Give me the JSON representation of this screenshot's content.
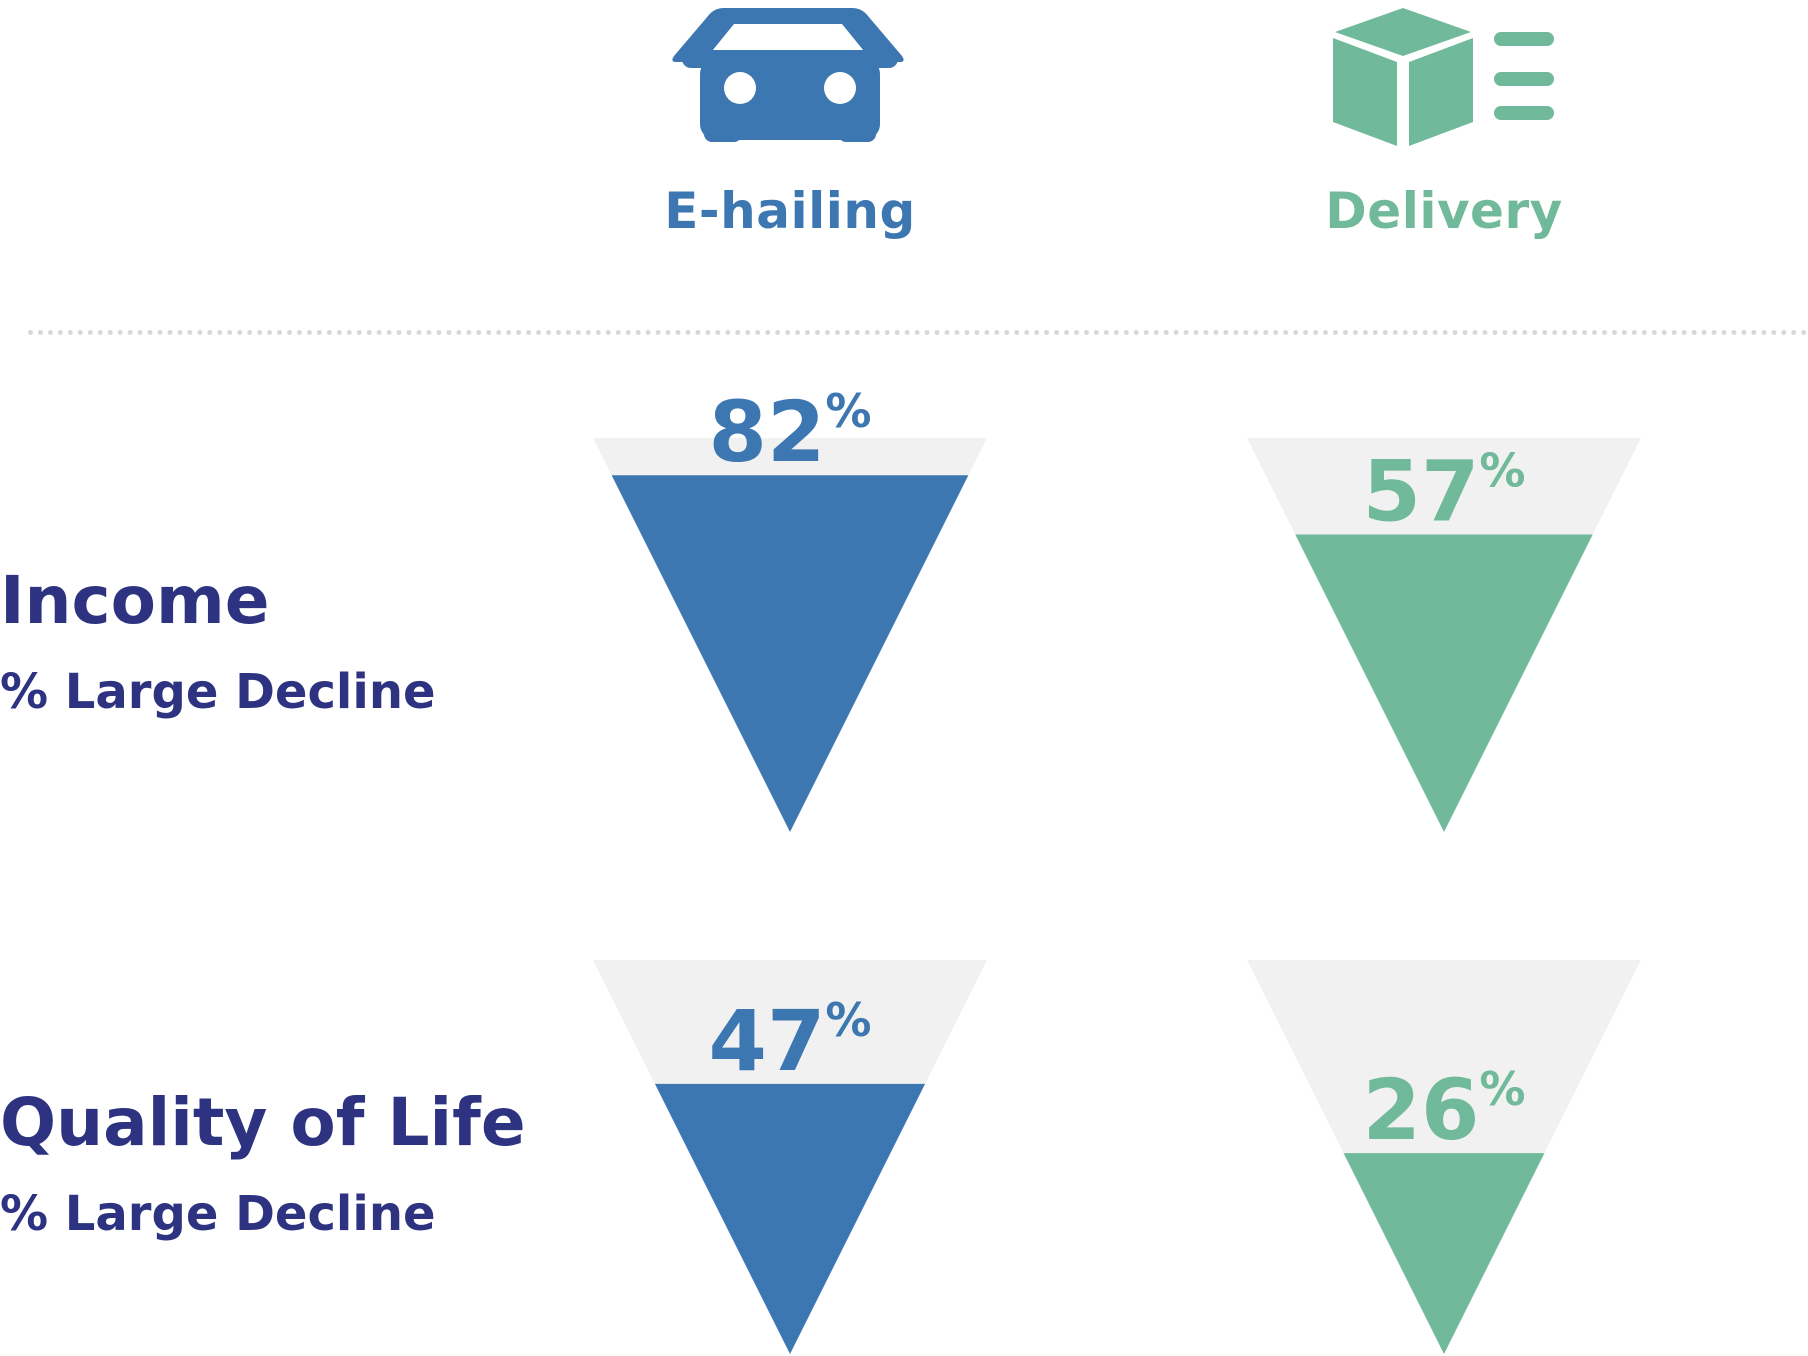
{
  "columns": [
    {
      "label": "E-hailing",
      "icon": "car-icon",
      "color": "#3d77b1"
    },
    {
      "label": "Delivery",
      "icon": "package-list-icon",
      "color": "#70b99b"
    }
  ],
  "rows": [
    {
      "title": "Income",
      "subtitle": "% Large Decline"
    },
    {
      "title": "Quality of Life",
      "subtitle": "% Large Decline"
    }
  ],
  "track_color": "#f0f1f0",
  "chart_data": {
    "type": "bar",
    "categories": [
      "Income",
      "Quality of Life"
    ],
    "series": [
      {
        "name": "E-hailing",
        "values": [
          82,
          47
        ],
        "labels": [
          "82%",
          "47%"
        ]
      },
      {
        "name": "Delivery",
        "values": [
          57,
          26
        ],
        "labels": [
          "57%",
          "26%"
        ]
      }
    ],
    "ylim": [
      0,
      100
    ],
    "title": "",
    "xlabel": "",
    "ylabel": ""
  }
}
